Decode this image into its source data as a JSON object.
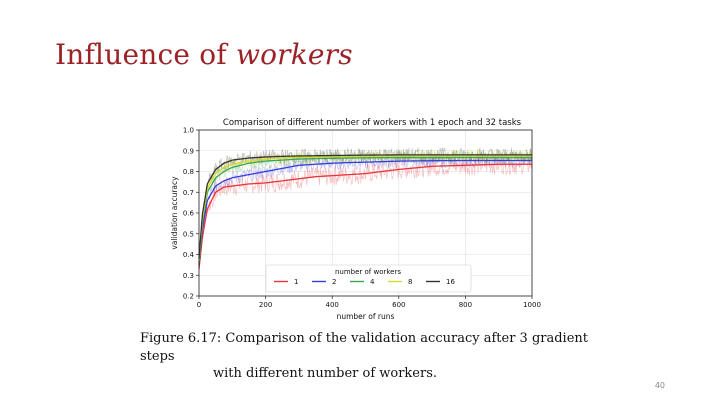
{
  "slide": {
    "title_main": "Influence of",
    "title_italic": "workers",
    "caption_line1": "Figure 6.17: Comparison of the validation accuracy after 3 gradient steps",
    "caption_line2": "with different number of workers.",
    "page_number": "40"
  },
  "chart_data": {
    "type": "line",
    "title": "Comparison of different number of workers with 1 epoch and 32 tasks",
    "xlabel": "number of runs",
    "ylabel": "validation accuracy",
    "xlim": [
      0,
      1000
    ],
    "ylim": [
      0.2,
      1.0
    ],
    "xticks": [
      0,
      200,
      400,
      600,
      800,
      1000
    ],
    "yticks": [
      0.2,
      0.3,
      0.4,
      0.5,
      0.6,
      0.7,
      0.8,
      0.9,
      1.0
    ],
    "grid": true,
    "legend_title": "number of workers",
    "legend_position": "bottom-center",
    "x": [
      0,
      10,
      25,
      50,
      75,
      100,
      150,
      200,
      250,
      300,
      350,
      400,
      450,
      500,
      600,
      700,
      800,
      900,
      1000
    ],
    "series": [
      {
        "name": "1",
        "color": "#e8343a",
        "values": [
          0.33,
          0.48,
          0.62,
          0.7,
          0.725,
          0.73,
          0.74,
          0.745,
          0.755,
          0.765,
          0.775,
          0.78,
          0.785,
          0.79,
          0.81,
          0.825,
          0.83,
          0.835,
          0.835
        ]
      },
      {
        "name": "2",
        "color": "#3b3bd9",
        "values": [
          0.35,
          0.52,
          0.66,
          0.73,
          0.755,
          0.77,
          0.785,
          0.8,
          0.815,
          0.83,
          0.835,
          0.84,
          0.843,
          0.845,
          0.85,
          0.852,
          0.853,
          0.853,
          0.853
        ]
      },
      {
        "name": "4",
        "color": "#3aa655",
        "values": [
          0.36,
          0.55,
          0.7,
          0.77,
          0.8,
          0.82,
          0.84,
          0.85,
          0.855,
          0.86,
          0.862,
          0.864,
          0.865,
          0.866,
          0.867,
          0.867,
          0.867,
          0.867,
          0.867
        ]
      },
      {
        "name": "8",
        "color": "#d9d92b",
        "values": [
          0.37,
          0.57,
          0.72,
          0.79,
          0.82,
          0.835,
          0.85,
          0.86,
          0.865,
          0.868,
          0.87,
          0.872,
          0.873,
          0.874,
          0.875,
          0.875,
          0.875,
          0.875,
          0.875
        ]
      },
      {
        "name": "16",
        "color": "#333333",
        "values": [
          0.38,
          0.59,
          0.74,
          0.81,
          0.84,
          0.855,
          0.865,
          0.87,
          0.873,
          0.875,
          0.876,
          0.877,
          0.878,
          0.879,
          0.88,
          0.88,
          0.88,
          0.88,
          0.88
        ]
      }
    ]
  }
}
